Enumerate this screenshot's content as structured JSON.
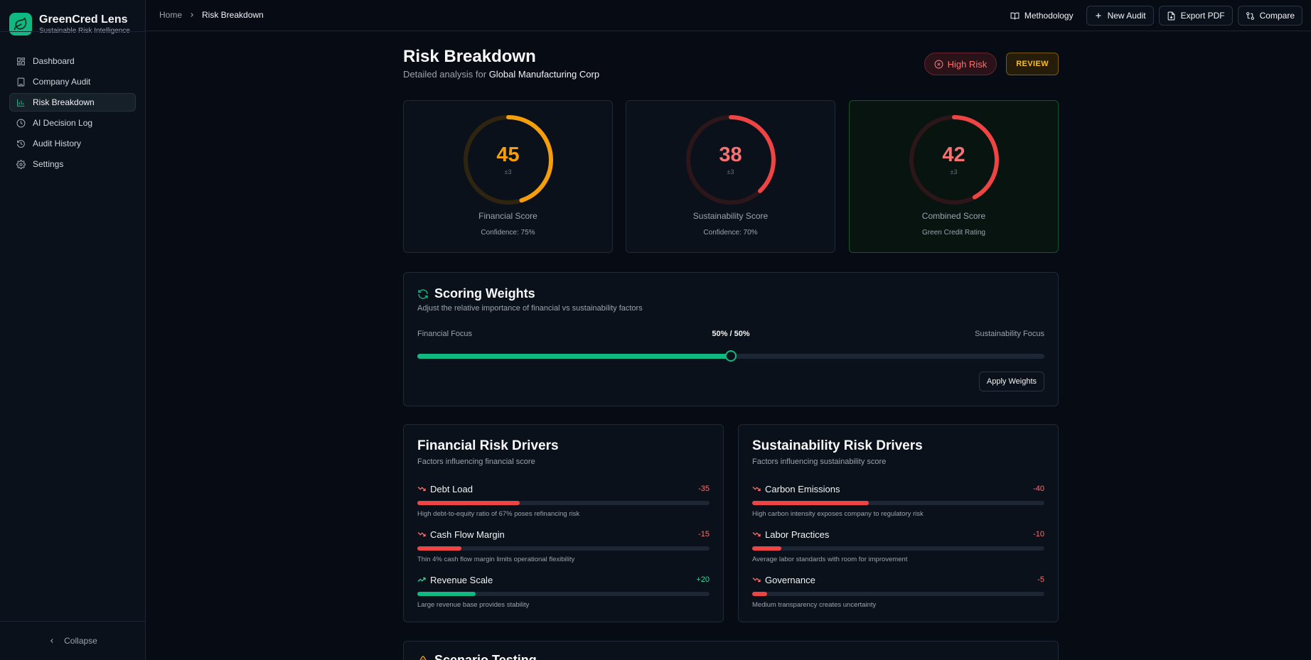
{
  "brand": {
    "name": "GreenCred Lens",
    "tagline": "Sustainable Risk Intelligence"
  },
  "nav": [
    {
      "label": "Dashboard",
      "icon": "grid-icon",
      "active": false
    },
    {
      "label": "Company Audit",
      "icon": "building-icon",
      "active": false
    },
    {
      "label": "Risk Breakdown",
      "icon": "bar-chart-icon",
      "active": true
    },
    {
      "label": "AI Decision Log",
      "icon": "clock-icon",
      "active": false
    },
    {
      "label": "Audit History",
      "icon": "history-icon",
      "active": false
    },
    {
      "label": "Settings",
      "icon": "gear-icon",
      "active": false
    }
  ],
  "collapse_label": "Collapse",
  "breadcrumb": {
    "home": "Home",
    "current": "Risk Breakdown"
  },
  "toolbar": {
    "methodology": "Methodology",
    "new_audit": "New Audit",
    "export_pdf": "Export PDF",
    "compare": "Compare"
  },
  "page": {
    "title": "Risk Breakdown",
    "subtitle_prefix": "Detailed analysis for",
    "company": "Global Manufacturing Corp",
    "risk_badge": "High Risk",
    "status_badge": "REVIEW"
  },
  "scores": [
    {
      "value": 45,
      "margin": "±3",
      "label": "Financial Score",
      "note": "Confidence: 75%",
      "color": "#f59e0b",
      "track": "#2e2410"
    },
    {
      "value": 38,
      "margin": "±3",
      "label": "Sustainability Score",
      "note": "Confidence: 70%",
      "color": "#ef4444",
      "track": "#2c161a"
    },
    {
      "value": 42,
      "margin": "±3",
      "label": "Combined Score",
      "note": "Green Credit Rating",
      "color": "#ef4444",
      "track": "#2c161a"
    }
  ],
  "weights": {
    "title": "Scoring Weights",
    "subtitle": "Adjust the relative importance of financial vs sustainability factors",
    "left_label": "Financial Focus",
    "right_label": "Sustainability Focus",
    "split_label": "50% / 50%",
    "financial_percent": 50,
    "apply_label": "Apply Weights"
  },
  "financial_drivers": {
    "title": "Financial Risk Drivers",
    "subtitle": "Factors influencing financial score",
    "items": [
      {
        "name": "Debt Load",
        "value": "-35",
        "impact": -35,
        "description": "High debt-to-equity ratio of 67% poses refinancing risk"
      },
      {
        "name": "Cash Flow Margin",
        "value": "-15",
        "impact": -15,
        "description": "Thin 4% cash flow margin limits operational flexibility"
      },
      {
        "name": "Revenue Scale",
        "value": "+20",
        "impact": 20,
        "description": "Large revenue base provides stability"
      }
    ]
  },
  "sustainability_drivers": {
    "title": "Sustainability Risk Drivers",
    "subtitle": "Factors influencing sustainability score",
    "items": [
      {
        "name": "Carbon Emissions",
        "value": "-40",
        "impact": -40,
        "description": "High carbon intensity exposes company to regulatory risk"
      },
      {
        "name": "Labor Practices",
        "value": "-10",
        "impact": -10,
        "description": "Average labor standards with room for improvement"
      },
      {
        "name": "Governance",
        "value": "-5",
        "impact": -5,
        "description": "Medium transparency creates uncertainty"
      }
    ]
  },
  "scenario": {
    "title": "Scenario Testing"
  }
}
